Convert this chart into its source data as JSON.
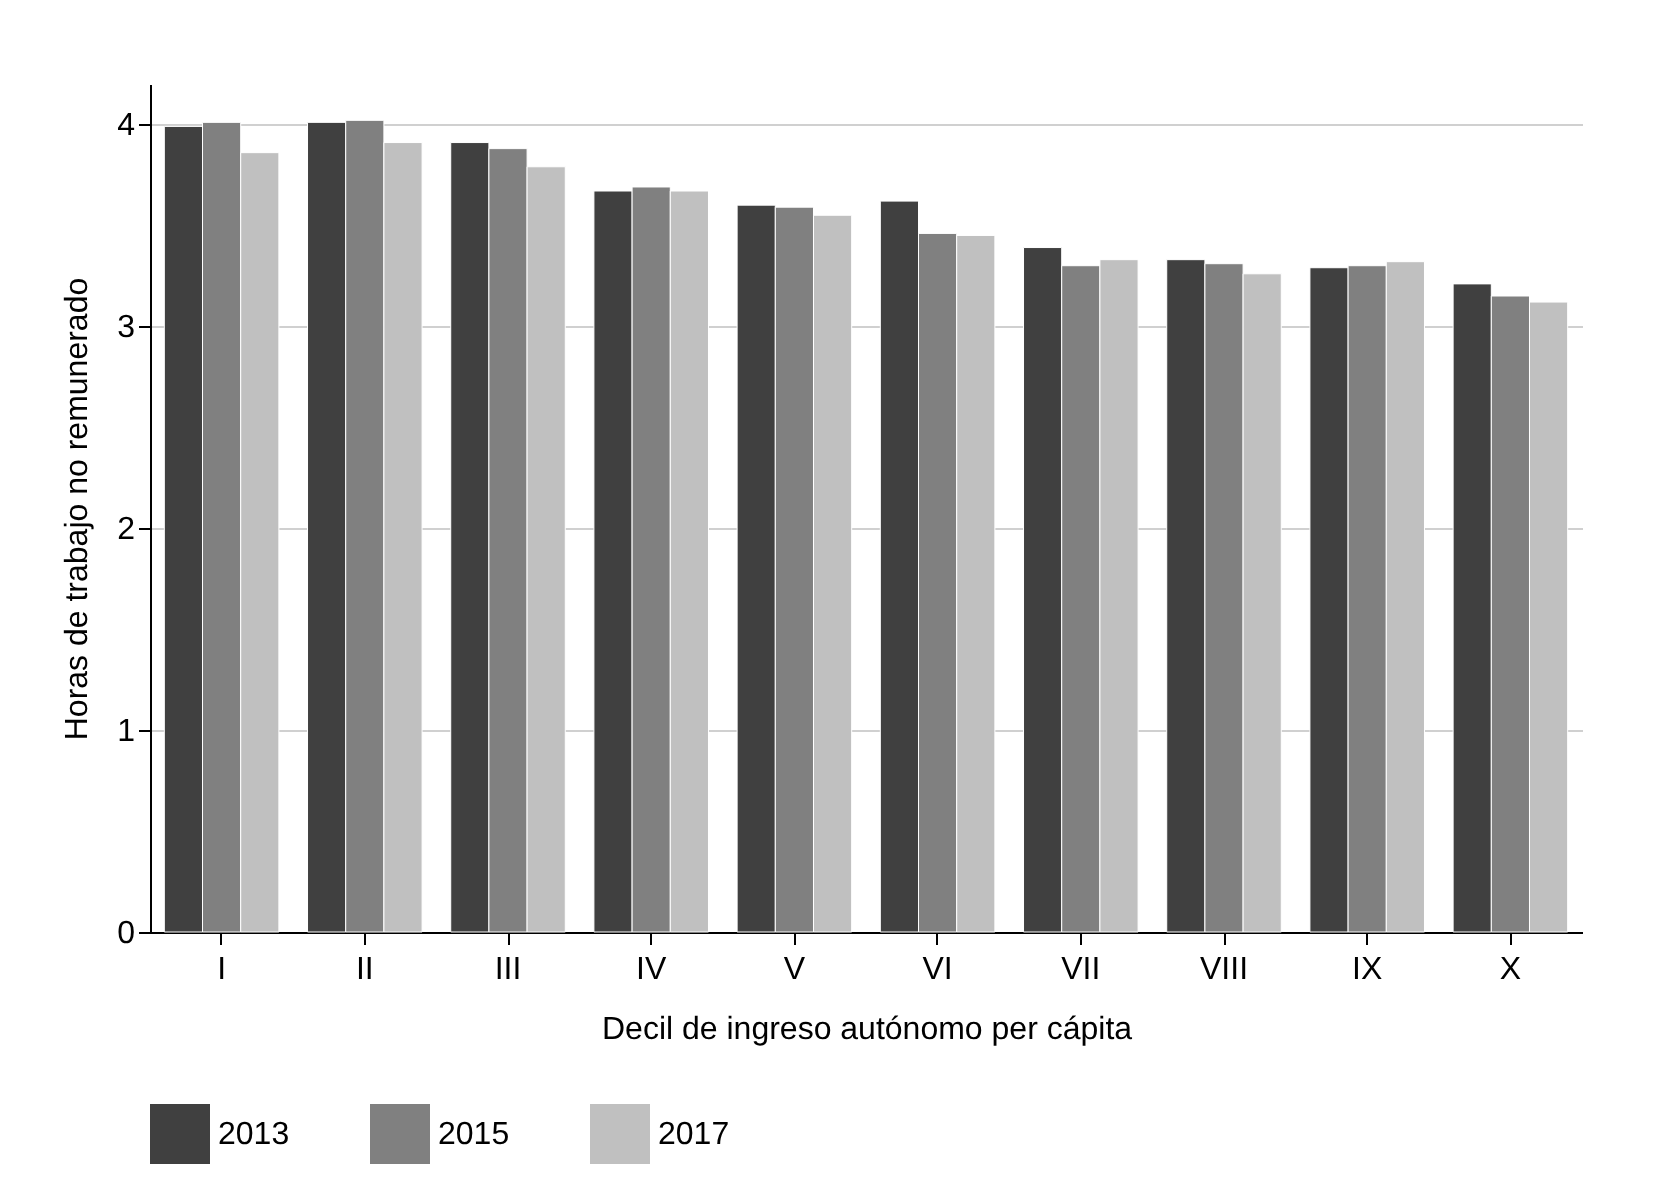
{
  "chart_data": {
    "type": "bar",
    "xlabel": "Decil de ingreso autónomo per cápita",
    "ylabel": "Horas de trabajo no remunerado",
    "categories": [
      "I",
      "II",
      "III",
      "IV",
      "V",
      "VI",
      "VII",
      "VIII",
      "IX",
      "X"
    ],
    "series": [
      {
        "name": "2013",
        "color": "#404040",
        "values": [
          3.99,
          4.01,
          3.91,
          3.67,
          3.6,
          3.62,
          3.39,
          3.33,
          3.29,
          3.21
        ]
      },
      {
        "name": "2015",
        "color": "#808080",
        "values": [
          4.01,
          4.02,
          3.88,
          3.69,
          3.59,
          3.46,
          3.3,
          3.31,
          3.3,
          3.15
        ]
      },
      {
        "name": "2017",
        "color": "#c0c0c0",
        "values": [
          3.86,
          3.91,
          3.79,
          3.67,
          3.55,
          3.45,
          3.33,
          3.26,
          3.32,
          3.12
        ]
      }
    ],
    "ylim": [
      0,
      4.2
    ],
    "yticks": [
      0,
      1,
      2,
      3,
      4
    ],
    "grid": "y",
    "legend": "bottom"
  }
}
